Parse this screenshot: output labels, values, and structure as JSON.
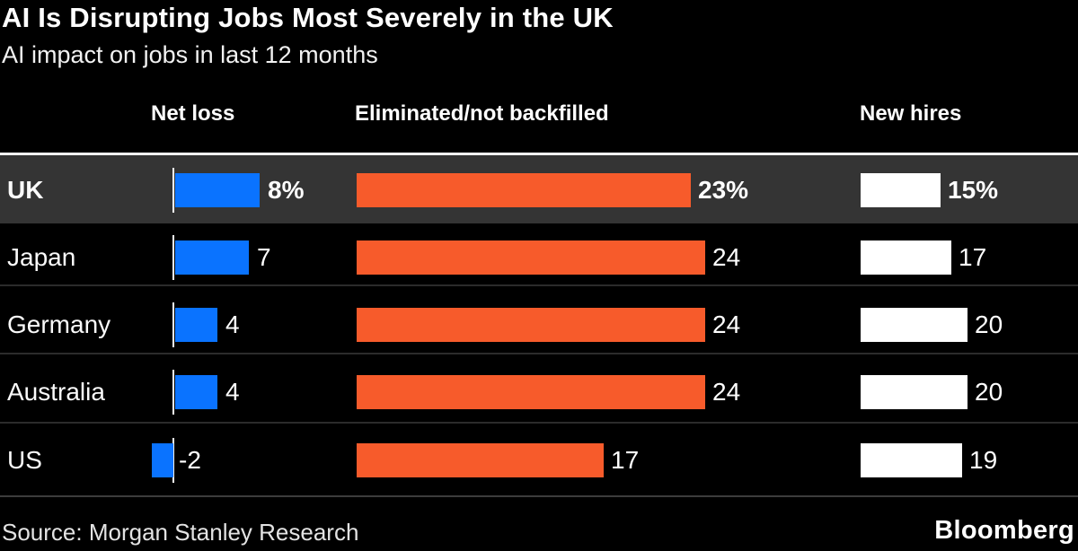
{
  "header": {
    "title": "AI Is Disrupting Jobs Most Severely in the UK",
    "subtitle": "AI impact on jobs in last 12 months"
  },
  "chart_data": {
    "type": "bar",
    "title": "AI Is Disrupting Jobs Most Severely in the UK",
    "subtitle": "AI impact on jobs in last 12 months",
    "unit": "%",
    "categories": [
      "UK",
      "Japan",
      "Germany",
      "Australia",
      "US"
    ],
    "highlighted_row": "UK",
    "series": [
      {
        "name": "Net loss",
        "values": [
          8,
          7,
          4,
          4,
          -2
        ],
        "labels": [
          "8%",
          "7",
          "4",
          "4",
          "-2"
        ],
        "color": "#0a73ff"
      },
      {
        "name": "Eliminated/not backfilled",
        "values": [
          23,
          24,
          24,
          24,
          17
        ],
        "labels": [
          "23%",
          "24",
          "24",
          "24",
          "17"
        ],
        "color": "#f75b2b"
      },
      {
        "name": "New hires",
        "values": [
          15,
          17,
          20,
          20,
          19
        ],
        "labels": [
          "15%",
          "17",
          "20",
          "20",
          "19"
        ],
        "color": "#ffffff"
      }
    ],
    "layout_hints": {
      "orientation": "horizontal",
      "grid": false,
      "legend": "column headers above each bar group",
      "negative_values_extend_left_of_axis": true
    }
  },
  "footer": {
    "source": "Source: Morgan Stanley Research",
    "brand": "Bloomberg"
  },
  "colors": {
    "background": "#000000",
    "net_loss_bar": "#0a73ff",
    "eliminated_bar": "#f75b2b",
    "new_hires_bar": "#ffffff",
    "highlight_row_bg": "#343434",
    "text": "#ffffff"
  }
}
